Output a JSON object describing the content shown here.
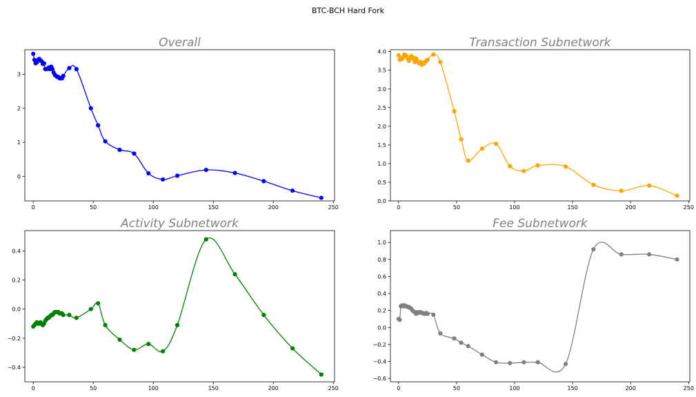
{
  "figure": {
    "suptitle": "BTC-BCH Hard Fork"
  },
  "chart_data": [
    {
      "type": "line",
      "title": "Overall",
      "color": "#0000ff",
      "xlim": [
        -7,
        251
      ],
      "ylim": [
        -0.72,
        3.72
      ],
      "xticks": [
        0,
        50,
        100,
        150,
        200,
        250
      ],
      "yticks": [
        0,
        1,
        2,
        3
      ],
      "markers": [
        [
          0,
          3.6
        ],
        [
          1,
          3.42
        ],
        [
          2,
          3.32
        ],
        [
          3,
          3.35
        ],
        [
          4,
          3.42
        ],
        [
          5,
          3.45
        ],
        [
          6,
          3.4
        ],
        [
          7,
          3.38
        ],
        [
          8,
          3.3
        ],
        [
          9,
          3.32
        ],
        [
          10,
          3.15
        ],
        [
          11,
          3.15
        ],
        [
          12,
          3.16
        ],
        [
          13,
          3.2
        ],
        [
          14,
          3.15
        ],
        [
          15,
          3.22
        ],
        [
          16,
          3.15
        ],
        [
          17,
          3.05
        ],
        [
          18,
          2.98
        ],
        [
          19,
          2.95
        ],
        [
          20,
          2.92
        ],
        [
          21,
          2.92
        ],
        [
          22,
          2.88
        ],
        [
          23,
          2.88
        ],
        [
          24,
          2.88
        ],
        [
          25,
          2.95
        ],
        [
          30,
          3.18
        ],
        [
          36,
          3.15
        ],
        [
          48,
          2.0
        ],
        [
          54,
          1.5
        ],
        [
          60,
          1.03
        ],
        [
          72,
          0.78
        ],
        [
          84,
          0.67
        ],
        [
          96,
          0.09
        ],
        [
          108,
          -0.09
        ],
        [
          120,
          0.02
        ],
        [
          144,
          0.19
        ],
        [
          168,
          0.1
        ],
        [
          192,
          -0.14
        ],
        [
          216,
          -0.42
        ],
        [
          240,
          -0.63
        ]
      ]
    },
    {
      "type": "line",
      "title": "Transaction Subnetwork",
      "color": "#ffa500",
      "xlim": [
        -7,
        251
      ],
      "ylim": [
        0.0,
        4.05
      ],
      "xticks": [
        0,
        50,
        100,
        150,
        200,
        250
      ],
      "yticks": [
        0.0,
        0.5,
        1.0,
        1.5,
        2.0,
        2.5,
        3.0,
        3.5,
        4.0
      ],
      "ytick_decimals": 1,
      "markers": [
        [
          0,
          3.9
        ],
        [
          1,
          3.78
        ],
        [
          2,
          3.82
        ],
        [
          3,
          3.8
        ],
        [
          4,
          3.85
        ],
        [
          5,
          3.92
        ],
        [
          6,
          3.9
        ],
        [
          7,
          3.88
        ],
        [
          8,
          3.8
        ],
        [
          9,
          3.75
        ],
        [
          10,
          3.82
        ],
        [
          11,
          3.88
        ],
        [
          12,
          3.85
        ],
        [
          13,
          3.8
        ],
        [
          14,
          3.72
        ],
        [
          15,
          3.82
        ],
        [
          16,
          3.75
        ],
        [
          17,
          3.72
        ],
        [
          18,
          3.68
        ],
        [
          19,
          3.72
        ],
        [
          20,
          3.65
        ],
        [
          21,
          3.7
        ],
        [
          22,
          3.68
        ],
        [
          23,
          3.72
        ],
        [
          24,
          3.75
        ],
        [
          25,
          3.78
        ],
        [
          30,
          3.92
        ],
        [
          36,
          3.72
        ],
        [
          48,
          2.4
        ],
        [
          54,
          1.65
        ],
        [
          60,
          1.08
        ],
        [
          72,
          1.4
        ],
        [
          84,
          1.53
        ],
        [
          96,
          0.93
        ],
        [
          108,
          0.8
        ],
        [
          120,
          0.95
        ],
        [
          144,
          0.92
        ],
        [
          168,
          0.43
        ],
        [
          192,
          0.27
        ],
        [
          216,
          0.41
        ],
        [
          240,
          0.14
        ]
      ]
    },
    {
      "type": "line",
      "title": "Activity Subnetwork",
      "color": "#008000",
      "xlim": [
        -7,
        251
      ],
      "ylim": [
        -0.5,
        0.54
      ],
      "xticks": [
        0,
        50,
        100,
        150,
        200,
        250
      ],
      "yticks": [
        -0.4,
        -0.2,
        0.0,
        0.2,
        0.4
      ],
      "ytick_decimals": 1,
      "markers": [
        [
          0,
          -0.12
        ],
        [
          1,
          -0.11
        ],
        [
          2,
          -0.1
        ],
        [
          3,
          -0.09
        ],
        [
          4,
          -0.1
        ],
        [
          5,
          -0.1
        ],
        [
          6,
          -0.09
        ],
        [
          7,
          -0.1
        ],
        [
          8,
          -0.11
        ],
        [
          9,
          -0.1
        ],
        [
          10,
          -0.08
        ],
        [
          11,
          -0.07
        ],
        [
          12,
          -0.06
        ],
        [
          13,
          -0.06
        ],
        [
          14,
          -0.05
        ],
        [
          15,
          -0.04
        ],
        [
          16,
          -0.04
        ],
        [
          17,
          -0.03
        ],
        [
          18,
          -0.02
        ],
        [
          19,
          -0.02
        ],
        [
          20,
          -0.02
        ],
        [
          21,
          -0.02
        ],
        [
          22,
          -0.03
        ],
        [
          23,
          -0.03
        ],
        [
          24,
          -0.03
        ],
        [
          25,
          -0.04
        ],
        [
          30,
          -0.04
        ],
        [
          36,
          -0.06
        ],
        [
          48,
          0.0
        ],
        [
          54,
          0.04
        ],
        [
          60,
          -0.11
        ],
        [
          72,
          -0.21
        ],
        [
          84,
          -0.28
        ],
        [
          96,
          -0.24
        ],
        [
          108,
          -0.29
        ],
        [
          120,
          -0.11
        ],
        [
          144,
          0.48
        ],
        [
          168,
          0.24
        ],
        [
          192,
          -0.04
        ],
        [
          216,
          -0.27
        ],
        [
          240,
          -0.45
        ]
      ]
    },
    {
      "type": "line",
      "title": "Fee Subnetwork",
      "color": "#808080",
      "xlim": [
        -7,
        251
      ],
      "ylim": [
        -0.64,
        1.14
      ],
      "xticks": [
        0,
        50,
        100,
        150,
        200,
        250
      ],
      "yticks": [
        -0.6,
        -0.4,
        -0.2,
        0.0,
        0.2,
        0.4,
        0.6,
        0.8,
        1.0
      ],
      "ytick_decimals": 1,
      "markers": [
        [
          0,
          0.1
        ],
        [
          1,
          0.09
        ],
        [
          2,
          0.25
        ],
        [
          3,
          0.26
        ],
        [
          4,
          0.25
        ],
        [
          5,
          0.26
        ],
        [
          6,
          0.25
        ],
        [
          7,
          0.25
        ],
        [
          8,
          0.24
        ],
        [
          9,
          0.24
        ],
        [
          10,
          0.23
        ],
        [
          11,
          0.22
        ],
        [
          12,
          0.2
        ],
        [
          13,
          0.19
        ],
        [
          14,
          0.18
        ],
        [
          15,
          0.16
        ],
        [
          16,
          0.18
        ],
        [
          17,
          0.17
        ],
        [
          18,
          0.18
        ],
        [
          19,
          0.18
        ],
        [
          20,
          0.17
        ],
        [
          21,
          0.17
        ],
        [
          22,
          0.16
        ],
        [
          23,
          0.16
        ],
        [
          24,
          0.17
        ],
        [
          25,
          0.16
        ],
        [
          30,
          0.15
        ],
        [
          36,
          -0.07
        ],
        [
          48,
          -0.13
        ],
        [
          54,
          -0.18
        ],
        [
          60,
          -0.22
        ],
        [
          72,
          -0.32
        ],
        [
          84,
          -0.41
        ],
        [
          96,
          -0.42
        ],
        [
          108,
          -0.41
        ],
        [
          120,
          -0.41
        ],
        [
          144,
          -0.43
        ],
        [
          168,
          0.92
        ],
        [
          192,
          0.86
        ],
        [
          216,
          0.86
        ],
        [
          240,
          0.8
        ]
      ]
    }
  ]
}
